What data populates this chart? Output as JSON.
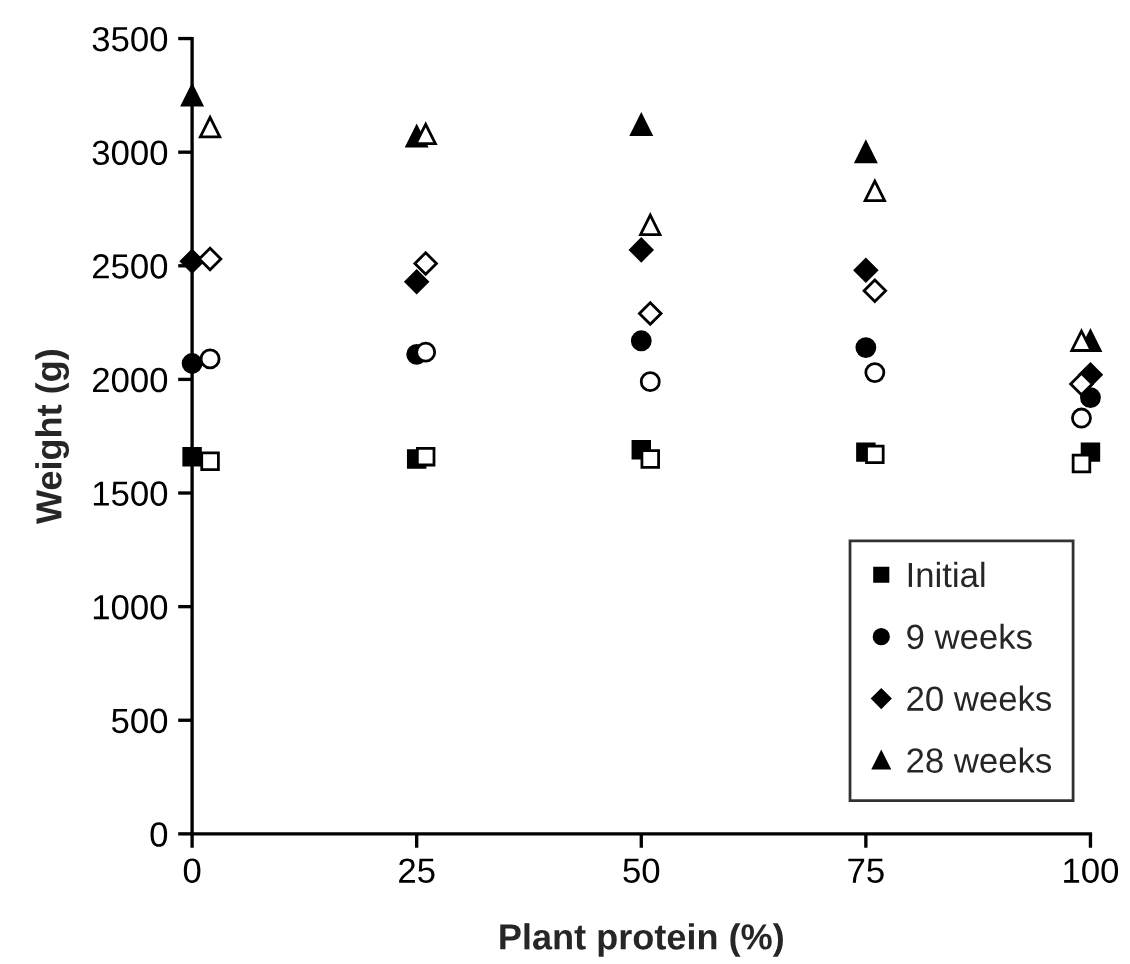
{
  "chart_data": {
    "type": "scatter",
    "xlabel": "Plant protein (%)",
    "ylabel": "Weight (g)",
    "xlim": [
      0,
      100
    ],
    "ylim": [
      0,
      3500
    ],
    "xticks": [
      0,
      25,
      50,
      75,
      100
    ],
    "yticks": [
      0,
      500,
      1000,
      1500,
      2000,
      2500,
      3000,
      3500
    ],
    "grid": false,
    "legend": "bottom right",
    "series": [
      {
        "name": "Initial",
        "color": "#000000",
        "marker": "square",
        "x": [
          0,
          25,
          50,
          75,
          100
        ],
        "values": [
          1660,
          1650,
          1690,
          1680,
          1680
        ]
      },
      {
        "name": "9 weeks",
        "color": "#000000",
        "marker": "circle",
        "x": [
          0,
          25,
          50,
          75,
          100
        ],
        "values": [
          2070,
          2110,
          2170,
          2140,
          1920
        ]
      },
      {
        "name": "20 weeks",
        "color": "#000000",
        "marker": "diamond",
        "x": [
          0,
          25,
          50,
          75,
          100
        ],
        "values": [
          2520,
          2430,
          2570,
          2480,
          2020
        ]
      },
      {
        "name": "28 weeks",
        "color": "#000000",
        "marker": "triangle",
        "x": [
          0,
          25,
          50,
          75,
          100
        ],
        "values": [
          3250,
          3070,
          3120,
          3000,
          2170
        ]
      },
      {
        "color": "#ffffff",
        "marker": "square",
        "x": [
          2,
          26,
          51,
          76,
          99
        ],
        "values": [
          1640,
          1660,
          1650,
          1670,
          1630
        ]
      },
      {
        "color": "#ffffff",
        "marker": "circle",
        "x": [
          2,
          26,
          51,
          76,
          99
        ],
        "values": [
          2090,
          2120,
          1990,
          2030,
          1830
        ]
      },
      {
        "color": "#ffffff",
        "marker": "diamond",
        "x": [
          2,
          26,
          51,
          76,
          99
        ],
        "values": [
          2530,
          2510,
          2290,
          2390,
          1980
        ]
      },
      {
        "color": "#ffffff",
        "marker": "triangle",
        "x": [
          2,
          26,
          51,
          76,
          99
        ],
        "values": [
          3110,
          3080,
          2680,
          2830,
          2170
        ]
      }
    ]
  }
}
